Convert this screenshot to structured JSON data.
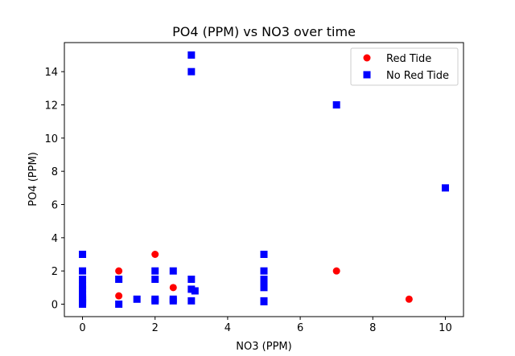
{
  "chart_data": {
    "type": "scatter",
    "title": "PO4 (PPM) vs NO3 over time",
    "xlabel": "NO3 (PPM)",
    "ylabel": "PO4 (PPM)",
    "xlim": [
      -0.5,
      10.5
    ],
    "ylim": [
      -0.75,
      15.75
    ],
    "xticks": [
      0,
      2,
      4,
      6,
      8,
      10
    ],
    "yticks": [
      0,
      2,
      4,
      6,
      8,
      10,
      12,
      14
    ],
    "grid": false,
    "legend_position": "top-right",
    "series": [
      {
        "name": "Red Tide",
        "marker": "circle",
        "color": "#ff0000",
        "points": [
          {
            "x": 1,
            "y": 2
          },
          {
            "x": 1,
            "y": 0.5
          },
          {
            "x": 2,
            "y": 3
          },
          {
            "x": 2.5,
            "y": 1
          },
          {
            "x": 7,
            "y": 2
          },
          {
            "x": 9,
            "y": 0.3
          }
        ]
      },
      {
        "name": "No Red Tide",
        "marker": "square",
        "color": "#0000ff",
        "points": [
          {
            "x": 0,
            "y": 3
          },
          {
            "x": 0,
            "y": 2
          },
          {
            "x": 0,
            "y": 1.5
          },
          {
            "x": 0,
            "y": 1.1
          },
          {
            "x": 0,
            "y": 0.9
          },
          {
            "x": 0,
            "y": 0.6
          },
          {
            "x": 0,
            "y": 0.4
          },
          {
            "x": 0,
            "y": 0.3
          },
          {
            "x": 0,
            "y": 0.2
          },
          {
            "x": 0,
            "y": 0.1
          },
          {
            "x": 0,
            "y": 0
          },
          {
            "x": 1,
            "y": 1.5
          },
          {
            "x": 1,
            "y": 0
          },
          {
            "x": 1.5,
            "y": 0.3
          },
          {
            "x": 2,
            "y": 2
          },
          {
            "x": 2,
            "y": 1.5
          },
          {
            "x": 2,
            "y": 0.3
          },
          {
            "x": 2,
            "y": 0.2
          },
          {
            "x": 2.5,
            "y": 2
          },
          {
            "x": 2.5,
            "y": 0.3
          },
          {
            "x": 2.5,
            "y": 0.2
          },
          {
            "x": 3,
            "y": 15
          },
          {
            "x": 3,
            "y": 14
          },
          {
            "x": 3,
            "y": 1.5
          },
          {
            "x": 3,
            "y": 0.9
          },
          {
            "x": 3,
            "y": 0.2
          },
          {
            "x": 3.1,
            "y": 0.8
          },
          {
            "x": 5,
            "y": 3
          },
          {
            "x": 5,
            "y": 2
          },
          {
            "x": 5,
            "y": 1.5
          },
          {
            "x": 5,
            "y": 1.4
          },
          {
            "x": 5,
            "y": 1
          },
          {
            "x": 5,
            "y": 0.2
          },
          {
            "x": 5,
            "y": 0.15
          },
          {
            "x": 7,
            "y": 12
          },
          {
            "x": 10,
            "y": 7
          }
        ]
      }
    ]
  }
}
